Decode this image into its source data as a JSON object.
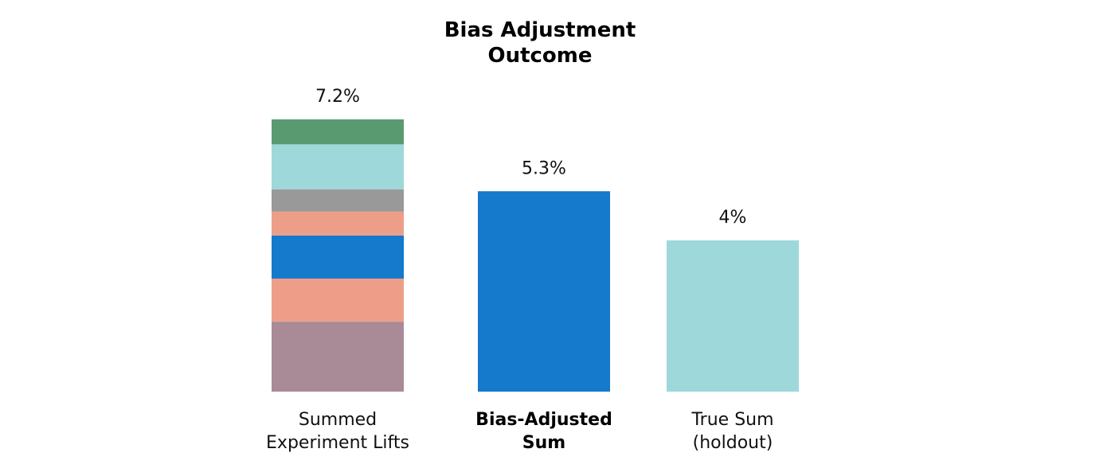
{
  "chart_data": {
    "type": "bar",
    "title_lines": [
      "Bias Adjustment",
      "Outcome"
    ],
    "categories": [
      [
        "Summed",
        "Experiment Lifts"
      ],
      [
        "Bias-Adjusted",
        "Sum"
      ],
      [
        "True Sum",
        "(holdout)"
      ]
    ],
    "emphasized_category_index": 1,
    "value_labels": [
      "7.2%",
      "5.3%",
      "4%"
    ],
    "values": [
      7.2,
      5.3,
      4.0
    ],
    "ylim": [
      0,
      7.2
    ],
    "grid": false,
    "legend": "none",
    "stacked_segments": [
      {
        "value": 1.85,
        "color": "#a88b97"
      },
      {
        "value": 1.14,
        "color": "#ee9e88"
      },
      {
        "value": 1.14,
        "color": "#1579cc"
      },
      {
        "value": 0.63,
        "color": "#ee9e88"
      },
      {
        "value": 0.59,
        "color": "#999999"
      },
      {
        "value": 1.19,
        "color": "#9ed8da"
      },
      {
        "value": 0.66,
        "color": "#5a9a70"
      }
    ],
    "bar_colors": [
      "#1579cc",
      "#9ed8da"
    ]
  }
}
